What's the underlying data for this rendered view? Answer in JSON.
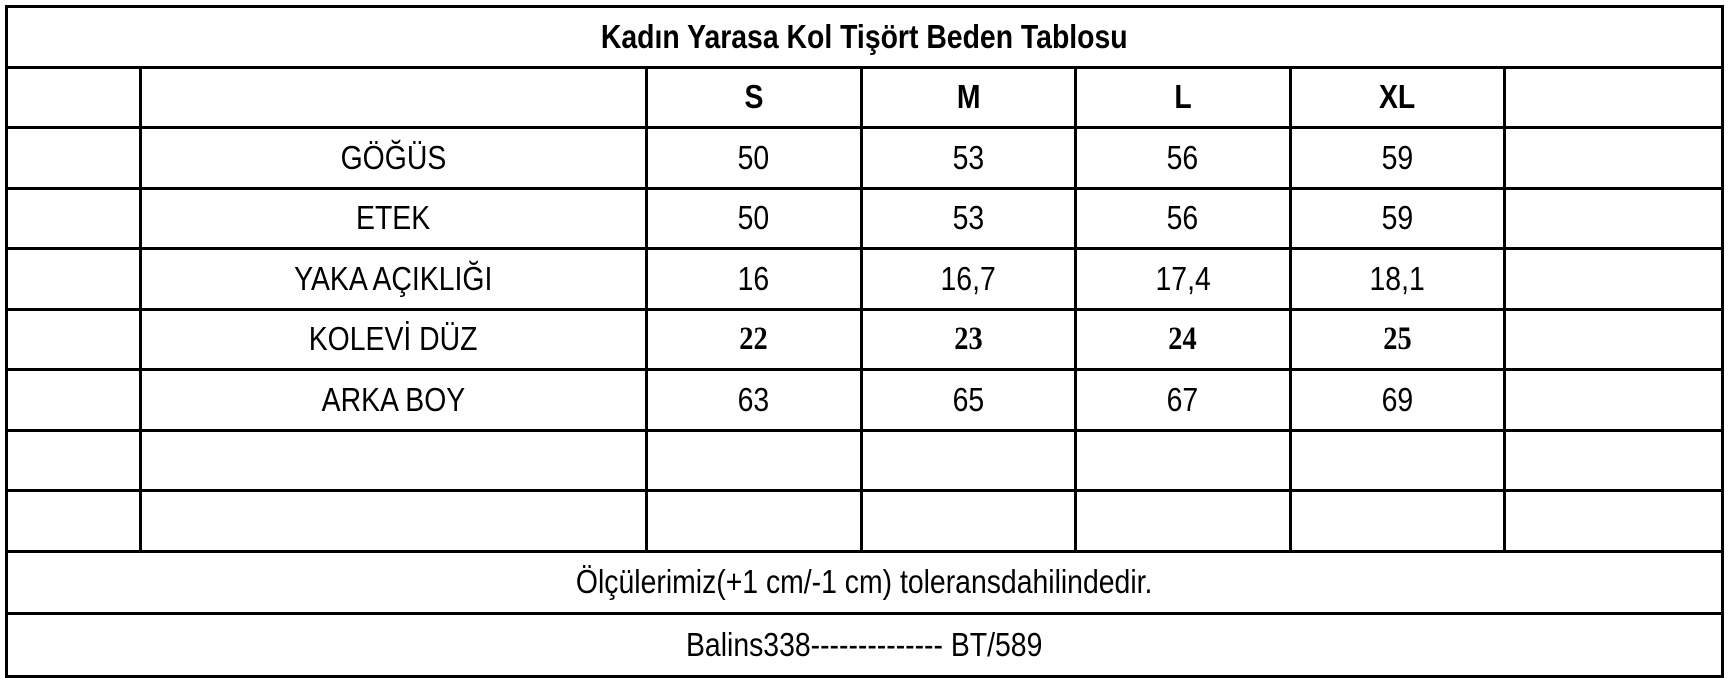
{
  "title": "Kadın Yarasa Kol Tişört Beden Tablosu",
  "sizes": [
    "S",
    "M",
    "L",
    "XL"
  ],
  "rows": [
    {
      "label": "GÖĞÜS",
      "values": [
        "50",
        "53",
        "56",
        "59"
      ]
    },
    {
      "label": "ETEK",
      "values": [
        "50",
        "53",
        "56",
        "59"
      ]
    },
    {
      "label": "YAKA AÇIKLIĞI",
      "values": [
        "16",
        "16,7",
        "17,4",
        "18,1"
      ]
    },
    {
      "label": "KOLEVİ DÜZ",
      "values": [
        "22",
        "23",
        "24",
        "25"
      ]
    },
    {
      "label": "ARKA BOY",
      "values": [
        "63",
        "65",
        "67",
        "69"
      ]
    }
  ],
  "footer": {
    "tolerance": "Ölçülerimiz(+1 cm/-1 cm) toleransdahilindedir.",
    "code": "Balins338-------------- BT/589"
  }
}
